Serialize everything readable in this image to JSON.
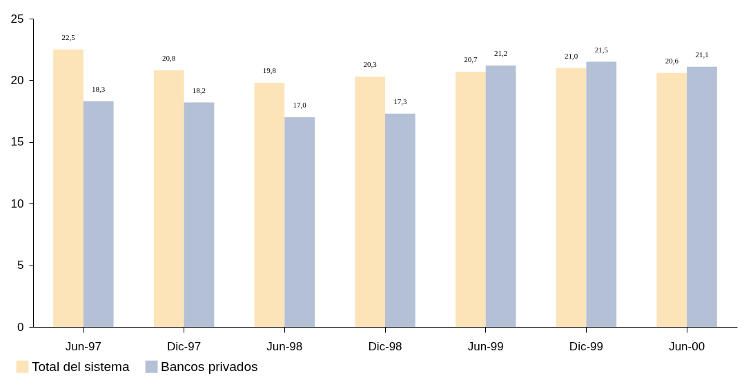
{
  "chart_data": {
    "type": "bar",
    "categories": [
      "Jun-97",
      "Dic-97",
      "Jun-98",
      "Dic-98",
      "Jun-99",
      "Dic-99",
      "Jun-00"
    ],
    "series": [
      {
        "name": "Total del sistema",
        "color": "#fde3b8",
        "values": [
          22.5,
          20.8,
          19.8,
          20.3,
          20.7,
          21.0,
          20.6
        ],
        "value_labels": [
          "22,5",
          "20,8",
          "19,8",
          "20,3",
          "20,7",
          "21,0",
          "20,6"
        ]
      },
      {
        "name": "Bancos privados",
        "color": "#b3c0d6",
        "values": [
          18.3,
          18.2,
          17.0,
          17.3,
          21.2,
          21.5,
          21.1
        ],
        "value_labels": [
          "18,3",
          "18,2",
          "17,0",
          "17,3",
          "21,2",
          "21,5",
          "21,1"
        ]
      }
    ],
    "ylim": [
      0,
      25
    ],
    "yticks": [
      0,
      5,
      10,
      15,
      20,
      25
    ],
    "grid": false,
    "legend": "bottom left"
  }
}
